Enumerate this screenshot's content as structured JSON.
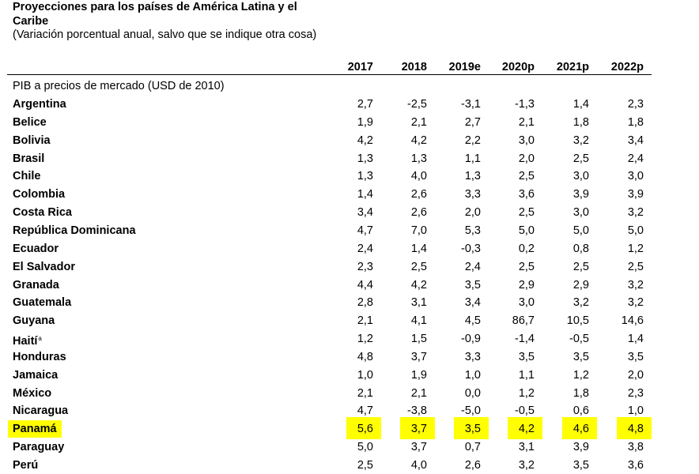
{
  "title": "Proyecciones para los países de América Latina y el Caribe",
  "subtitle": "(Variación porcentual anual, salvo que se indique otra cosa)",
  "columns": [
    "2017",
    "2018",
    "2019e",
    "2020p",
    "2021p",
    "2022p"
  ],
  "section_label": "PIB a precios de mercado (USD de 2010)",
  "highlight_color": "#ffff00",
  "rows": [
    {
      "name": "Argentina",
      "values": [
        "2,7",
        "-2,5",
        "-3,1",
        "-1,3",
        "1,4",
        "2,3"
      ]
    },
    {
      "name": "Belice",
      "values": [
        "1,9",
        "2,1",
        "2,7",
        "2,1",
        "1,8",
        "1,8"
      ]
    },
    {
      "name": "Bolivia",
      "values": [
        "4,2",
        "4,2",
        "2,2",
        "3,0",
        "3,2",
        "3,4"
      ]
    },
    {
      "name": "Brasil",
      "values": [
        "1,3",
        "1,3",
        "1,1",
        "2,0",
        "2,5",
        "2,4"
      ]
    },
    {
      "name": "Chile",
      "values": [
        "1,3",
        "4,0",
        "1,3",
        "2,5",
        "3,0",
        "3,0"
      ]
    },
    {
      "name": "Colombia",
      "values": [
        "1,4",
        "2,6",
        "3,3",
        "3,6",
        "3,9",
        "3,9"
      ]
    },
    {
      "name": "Costa Rica",
      "values": [
        "3,4",
        "2,6",
        "2,0",
        "2,5",
        "3,0",
        "3,2"
      ]
    },
    {
      "name": "República Dominicana",
      "values": [
        "4,7",
        "7,0",
        "5,3",
        "5,0",
        "5,0",
        "5,0"
      ]
    },
    {
      "name": "Ecuador",
      "values": [
        "2,4",
        "1,4",
        "-0,3",
        "0,2",
        "0,8",
        "1,2"
      ]
    },
    {
      "name": "El Salvador",
      "values": [
        "2,3",
        "2,5",
        "2,4",
        "2,5",
        "2,5",
        "2,5"
      ]
    },
    {
      "name": "Granada",
      "values": [
        "4,4",
        "4,2",
        "3,5",
        "2,9",
        "2,9",
        "3,2"
      ]
    },
    {
      "name": "Guatemala",
      "values": [
        "2,8",
        "3,1",
        "3,4",
        "3,0",
        "3,2",
        "3,2"
      ]
    },
    {
      "name": "Guyana",
      "values": [
        "2,1",
        "4,1",
        "4,5",
        "86,7",
        "10,5",
        "14,6"
      ]
    },
    {
      "name": "Haití",
      "sup": "a",
      "values": [
        "1,2",
        "1,5",
        "-0,9",
        "-1,4",
        "-0,5",
        "1,4"
      ]
    },
    {
      "name": "Honduras",
      "values": [
        "4,8",
        "3,7",
        "3,3",
        "3,5",
        "3,5",
        "3,5"
      ]
    },
    {
      "name": "Jamaica",
      "values": [
        "1,0",
        "1,9",
        "1,0",
        "1,1",
        "1,2",
        "2,0"
      ]
    },
    {
      "name": "México",
      "values": [
        "2,1",
        "2,1",
        "0,0",
        "1,2",
        "1,8",
        "2,3"
      ]
    },
    {
      "name": "Nicaragua",
      "values": [
        "4,7",
        "-3,8",
        "-5,0",
        "-0,5",
        "0,6",
        "1,0"
      ]
    },
    {
      "name": "Panamá",
      "values": [
        "5,6",
        "3,7",
        "3,5",
        "4,2",
        "4,6",
        "4,8"
      ],
      "highlight": true
    },
    {
      "name": "Paraguay",
      "values": [
        "5,0",
        "3,7",
        "0,7",
        "3,1",
        "3,9",
        "3,8"
      ]
    },
    {
      "name": "Perú",
      "values": [
        "2,5",
        "4,0",
        "2,6",
        "3,2",
        "3,5",
        "3,6"
      ]
    }
  ]
}
